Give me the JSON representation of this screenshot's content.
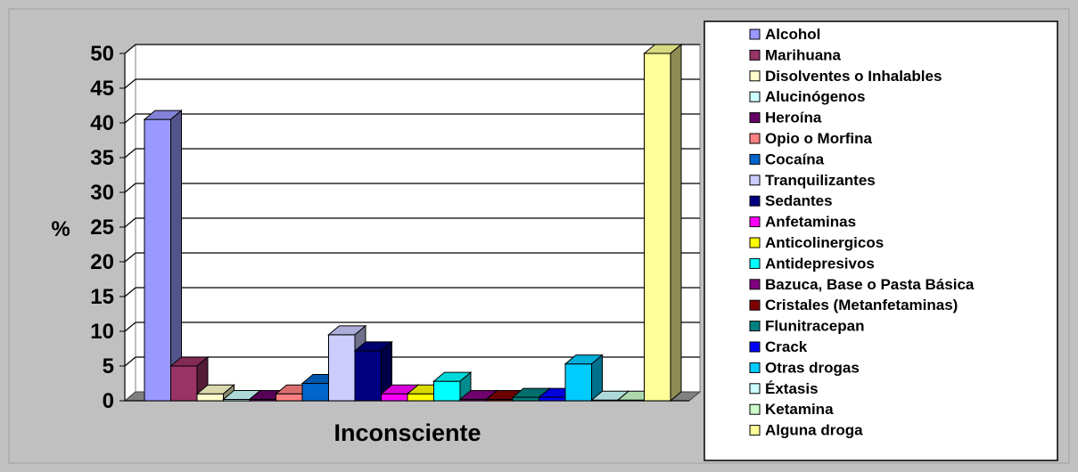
{
  "chart_data": {
    "type": "bar",
    "category": "Inconsciente",
    "ylabel": "%",
    "ylim": [
      0,
      50
    ],
    "yticks": [
      0,
      5,
      10,
      15,
      20,
      25,
      30,
      35,
      40,
      45,
      50
    ],
    "grid": true,
    "legend_position": "right",
    "series": [
      {
        "name": "Alcohol",
        "value": 40.5,
        "color": "#9999ff"
      },
      {
        "name": "Marihuana",
        "value": 5.0,
        "color": "#993366"
      },
      {
        "name": "Disolventes o Inhalables",
        "value": 1.0,
        "color": "#ffffcc"
      },
      {
        "name": "Alucinógenos",
        "value": 0.2,
        "color": "#ccffff"
      },
      {
        "name": " Heroína",
        "value": 0.2,
        "color": "#660066"
      },
      {
        "name": "Opio o Morfina",
        "value": 1.0,
        "color": "#ff8080"
      },
      {
        "name": "Cocaína",
        "value": 2.5,
        "color": "#0066cc"
      },
      {
        "name": "Tranquilizantes",
        "value": 9.5,
        "color": "#ccccff"
      },
      {
        "name": "Sedantes",
        "value": 7.2,
        "color": "#000080"
      },
      {
        "name": "Anfetaminas",
        "value": 1.0,
        "color": "#ff00ff"
      },
      {
        "name": "Anticolinergicos",
        "value": 1.0,
        "color": "#ffff00"
      },
      {
        "name": "Antidepresivos",
        "value": 2.8,
        "color": "#00ffff"
      },
      {
        "name": "Bazuca, Base o Pasta Básica",
        "value": 0.2,
        "color": "#800080"
      },
      {
        "name": "Cristales (Metanfetaminas)",
        "value": 0.2,
        "color": "#800000"
      },
      {
        "name": "Flunitracepan",
        "value": 0.5,
        "color": "#008080"
      },
      {
        "name": "Crack",
        "value": 0.5,
        "color": "#0000ff"
      },
      {
        "name": "Otras drogas",
        "value": 5.3,
        "color": "#00ccff"
      },
      {
        "name": "Éxtasis",
        "value": 0.1,
        "color": "#ccffff"
      },
      {
        "name": "Ketamina",
        "value": 0.1,
        "color": "#ccffcc"
      },
      {
        "name": "Alguna droga",
        "value": 50.0,
        "color": "#ffff99"
      }
    ]
  }
}
